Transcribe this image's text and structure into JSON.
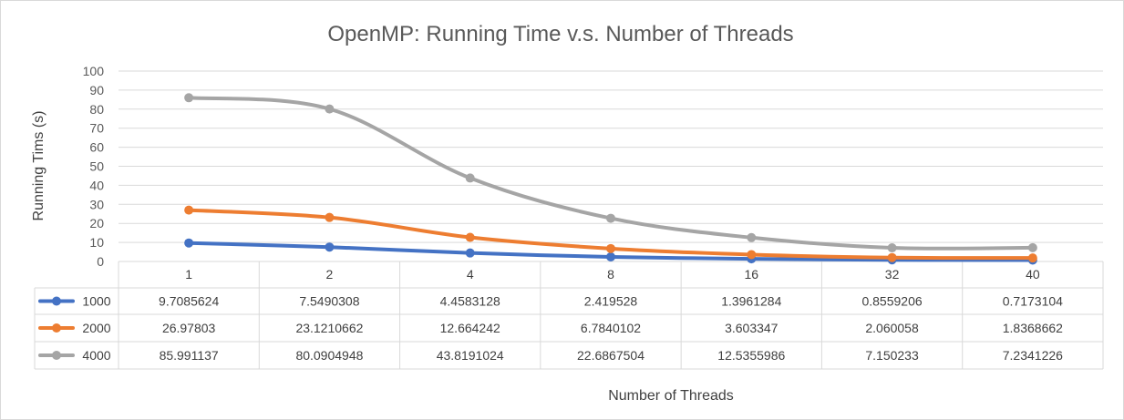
{
  "chart_data": {
    "type": "line",
    "title": "OpenMP: Running Time v.s. Number of Threads",
    "xlabel": "Number of Threads",
    "ylabel": "Running Tims (s)",
    "categories": [
      "1",
      "2",
      "4",
      "8",
      "16",
      "32",
      "40"
    ],
    "ylim": [
      0,
      100
    ],
    "yticks": [
      0,
      10,
      20,
      30,
      40,
      50,
      60,
      70,
      80,
      90,
      100
    ],
    "grid": true,
    "legend": "data-table",
    "series": [
      {
        "name": "1000",
        "color": "#4472C4",
        "values": [
          9.7085624,
          7.5490308,
          4.4583128,
          2.419528,
          1.3961284,
          0.8559206,
          0.7173104
        ],
        "labels": [
          "9.7085624",
          "7.5490308",
          "4.4583128",
          "2.419528",
          "1.3961284",
          "0.8559206",
          "0.7173104"
        ]
      },
      {
        "name": "2000",
        "color": "#ED7D31",
        "values": [
          26.97803,
          23.1210662,
          12.664242,
          6.7840102,
          3.603347,
          2.060058,
          1.8368662
        ],
        "labels": [
          "26.97803",
          "23.1210662",
          "12.664242",
          "6.7840102",
          "3.603347",
          "2.060058",
          "1.8368662"
        ]
      },
      {
        "name": "4000",
        "color": "#A5A5A5",
        "values": [
          85.991137,
          80.0904948,
          43.8191024,
          22.6867504,
          12.5355986,
          7.150233,
          7.2341226
        ],
        "labels": [
          "85.991137",
          "80.0904948",
          "43.8191024",
          "22.6867504",
          "12.5355986",
          "7.150233",
          "7.2341226"
        ]
      }
    ]
  }
}
